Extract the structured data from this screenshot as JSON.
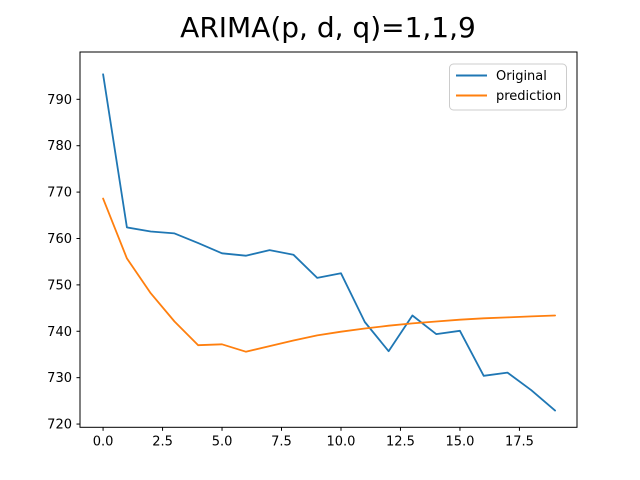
{
  "chart_data": {
    "type": "line",
    "title": "ARIMA(p, d, q)=1,1,9",
    "xlabel": "",
    "ylabel": "",
    "grid": false,
    "legend_position": "upper right",
    "x": [
      0,
      1,
      2,
      3,
      4,
      5,
      6,
      7,
      8,
      9,
      10,
      11,
      12,
      13,
      14,
      15,
      16,
      17,
      18,
      19
    ],
    "series": [
      {
        "name": "Original",
        "color": "#1f77b4",
        "values": [
          795.4,
          762.4,
          761.5,
          761.1,
          759.0,
          756.8,
          756.3,
          757.5,
          756.5,
          751.5,
          752.5,
          742.0,
          735.7,
          743.4,
          739.4,
          740.1,
          730.4,
          731.1,
          727.3,
          722.9
        ]
      },
      {
        "name": "prediction",
        "color": "#ff7f0e",
        "values": [
          768.6,
          755.7,
          748.2,
          742.1,
          737.0,
          737.2,
          735.6,
          736.8,
          738.0,
          739.1,
          739.9,
          740.6,
          741.2,
          741.7,
          742.1,
          742.5,
          742.8,
          743.0,
          743.2,
          743.4
        ]
      }
    ],
    "xlim": [
      -0.97,
      19.92
    ],
    "ylim": [
      719.3,
      800.2
    ],
    "xtick_values": [
      0,
      2.5,
      5,
      7.5,
      10,
      12.5,
      15,
      17.5
    ],
    "xtick_labels": [
      "0.0",
      "2.5",
      "5.0",
      "7.5",
      "10.0",
      "12.5",
      "15.0",
      "17.5"
    ],
    "ytick_values": [
      720,
      730,
      740,
      750,
      760,
      770,
      780,
      790
    ],
    "ytick_labels": [
      "720",
      "730",
      "740",
      "750",
      "760",
      "770",
      "780",
      "790"
    ]
  }
}
